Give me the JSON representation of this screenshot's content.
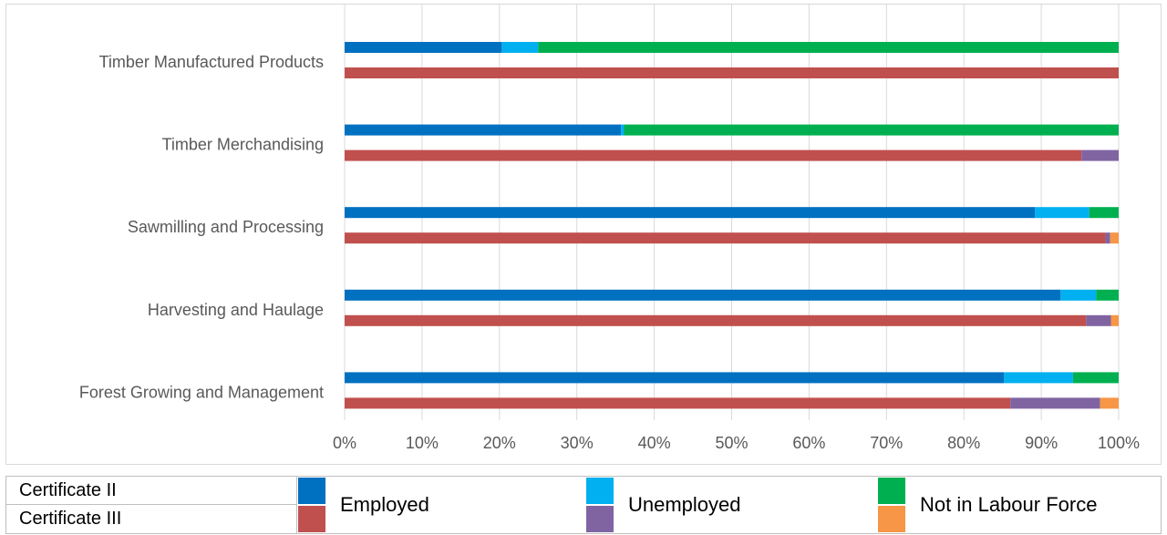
{
  "title": "",
  "chart_data": {
    "type": "bar",
    "orientation": "horizontal",
    "stacked": "100%",
    "categories": [
      "Timber Manufactured Products",
      "Timber Merchandising",
      "Sawmilling and Processing",
      "Harvesting and Haulage",
      "Forest Growing and Management"
    ],
    "xlim": [
      0,
      100
    ],
    "xticks": [
      "0%",
      "10%",
      "20%",
      "30%",
      "40%",
      "50%",
      "60%",
      "70%",
      "80%",
      "90%",
      "100%"
    ],
    "grid": true,
    "qualifications": [
      {
        "name": "Certificate II",
        "colors": [
          "#0070c0",
          "#00b0f0",
          "#00b050"
        ],
        "values": [
          [
            20.3,
            4.7,
            75.0
          ],
          [
            35.7,
            0.4,
            63.9
          ],
          [
            89.2,
            7.0,
            3.8
          ],
          [
            92.5,
            4.6,
            2.9
          ],
          [
            85.2,
            8.9,
            5.9
          ]
        ]
      },
      {
        "name": "Certificate III",
        "colors": [
          "#c0504d",
          "#8064a2",
          "#f79646"
        ],
        "values": [
          [
            100.0,
            0.0,
            0.0
          ],
          [
            95.2,
            4.8,
            0.0
          ],
          [
            98.3,
            0.6,
            1.1
          ],
          [
            95.8,
            3.2,
            1.0
          ],
          [
            86.0,
            11.6,
            2.4
          ]
        ]
      }
    ],
    "legend": {
      "rows": [
        "Certificate II",
        "Certificate III"
      ],
      "series": [
        "Employed",
        "Unemployed",
        "Not in Labour Force"
      ]
    }
  }
}
